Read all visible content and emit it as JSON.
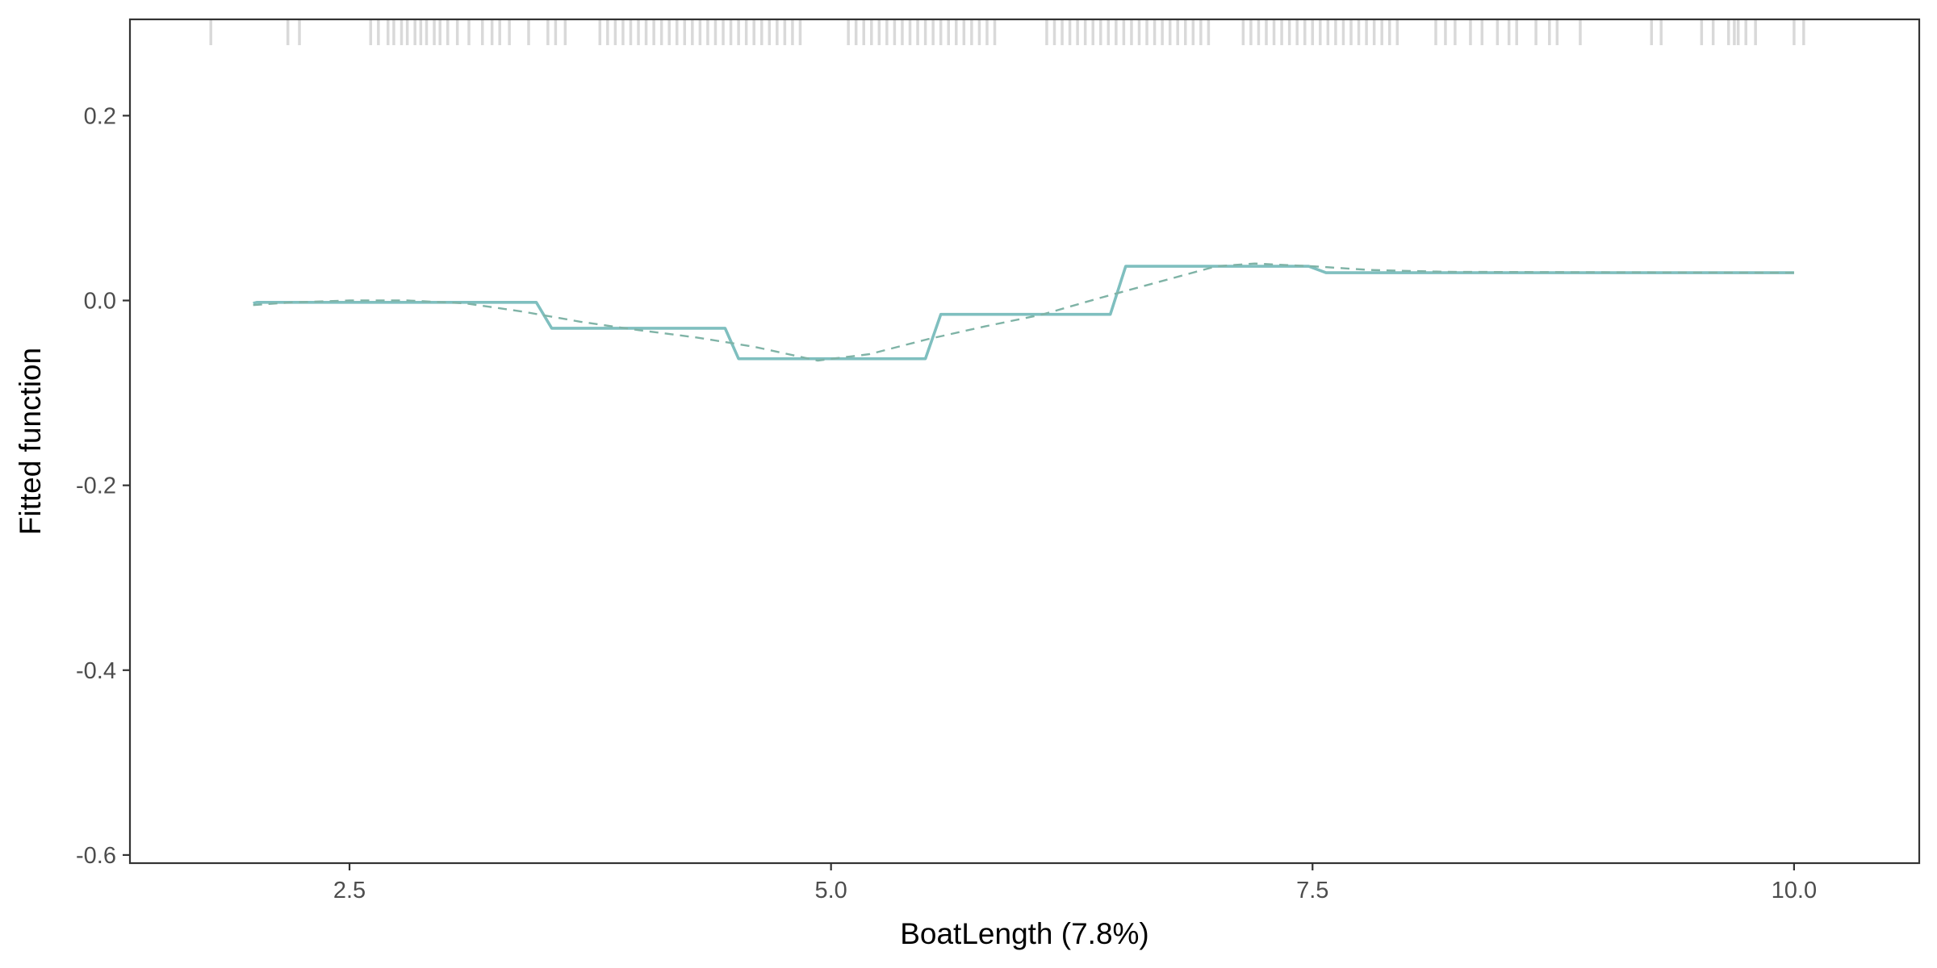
{
  "chart_data": {
    "type": "line",
    "title": "",
    "xlabel": "BoatLength  (7.8%)",
    "ylabel": "Fitted function",
    "xlim": [
      1.36,
      10.65
    ],
    "ylim": [
      -0.6088,
      0.3042
    ],
    "x_ticks": [
      2.5,
      5.0,
      7.5,
      10.0
    ],
    "x_tick_labels": [
      "2.5",
      "5.0",
      "7.5",
      "10.0"
    ],
    "y_ticks": [
      0.2,
      0.0,
      -0.2,
      -0.4,
      -0.6
    ],
    "y_tick_labels": [
      "0.2",
      "0.0",
      "-0.2",
      "-0.4",
      "-0.6"
    ],
    "grid": false,
    "legend": "none",
    "series": [
      {
        "style": "solid",
        "color": "#7fbfbf",
        "x": [
          2.0,
          2.02,
          3.47,
          3.55,
          4.45,
          4.52,
          5.49,
          5.57,
          6.45,
          6.53,
          7.48,
          7.57,
          10.0
        ],
        "y": [
          -0.003,
          -0.002,
          -0.002,
          -0.03,
          -0.03,
          -0.063,
          -0.063,
          -0.015,
          -0.015,
          0.037,
          0.037,
          0.03,
          0.03
        ]
      },
      {
        "style": "dashed",
        "color": "#7fb3a6",
        "x": [
          2.0,
          2.2,
          2.5,
          2.8,
          3.1,
          3.4,
          3.7,
          4.0,
          4.3,
          4.6,
          4.93,
          5.2,
          5.5,
          5.8,
          6.1,
          6.4,
          6.7,
          7.0,
          7.2,
          7.5,
          7.8,
          8.2,
          10.0
        ],
        "y": [
          -0.005,
          -0.002,
          0.0,
          0.0,
          -0.003,
          -0.012,
          -0.023,
          -0.032,
          -0.04,
          -0.05,
          -0.065,
          -0.058,
          -0.042,
          -0.028,
          -0.015,
          0.003,
          0.02,
          0.037,
          0.04,
          0.037,
          0.033,
          0.031,
          0.03
        ]
      }
    ],
    "rug": {
      "color": "#d9d9d9",
      "x": [
        1.78,
        2.18,
        2.24,
        2.61,
        2.65,
        2.7,
        2.73,
        2.77,
        2.8,
        2.84,
        2.87,
        2.9,
        2.94,
        2.97,
        3.01,
        3.06,
        3.12,
        3.19,
        3.24,
        3.28,
        3.33,
        3.43,
        3.53,
        3.57,
        3.62,
        3.8,
        3.84,
        3.88,
        3.92,
        3.96,
        4.0,
        4.04,
        4.08,
        4.12,
        4.16,
        4.2,
        4.24,
        4.28,
        4.32,
        4.36,
        4.4,
        4.44,
        4.48,
        4.52,
        4.56,
        4.6,
        4.64,
        4.68,
        4.72,
        4.76,
        4.8,
        4.84,
        5.09,
        5.13,
        5.17,
        5.21,
        5.25,
        5.29,
        5.33,
        5.37,
        5.41,
        5.45,
        5.49,
        5.53,
        5.57,
        5.61,
        5.65,
        5.69,
        5.73,
        5.77,
        5.81,
        5.85,
        6.12,
        6.16,
        6.2,
        6.24,
        6.28,
        6.32,
        6.36,
        6.4,
        6.44,
        6.48,
        6.52,
        6.56,
        6.6,
        6.64,
        6.68,
        6.72,
        6.76,
        6.8,
        6.84,
        6.88,
        6.92,
        6.96,
        7.14,
        7.18,
        7.22,
        7.26,
        7.3,
        7.34,
        7.38,
        7.42,
        7.46,
        7.5,
        7.54,
        7.58,
        7.62,
        7.66,
        7.7,
        7.74,
        7.78,
        7.82,
        7.86,
        7.9,
        7.94,
        8.14,
        8.19,
        8.24,
        8.32,
        8.38,
        8.46,
        8.52,
        8.56,
        8.66,
        8.73,
        8.77,
        8.89,
        9.26,
        9.31,
        9.52,
        9.58,
        9.66,
        9.69,
        9.71,
        9.75,
        9.8,
        10.0,
        10.05
      ]
    }
  }
}
